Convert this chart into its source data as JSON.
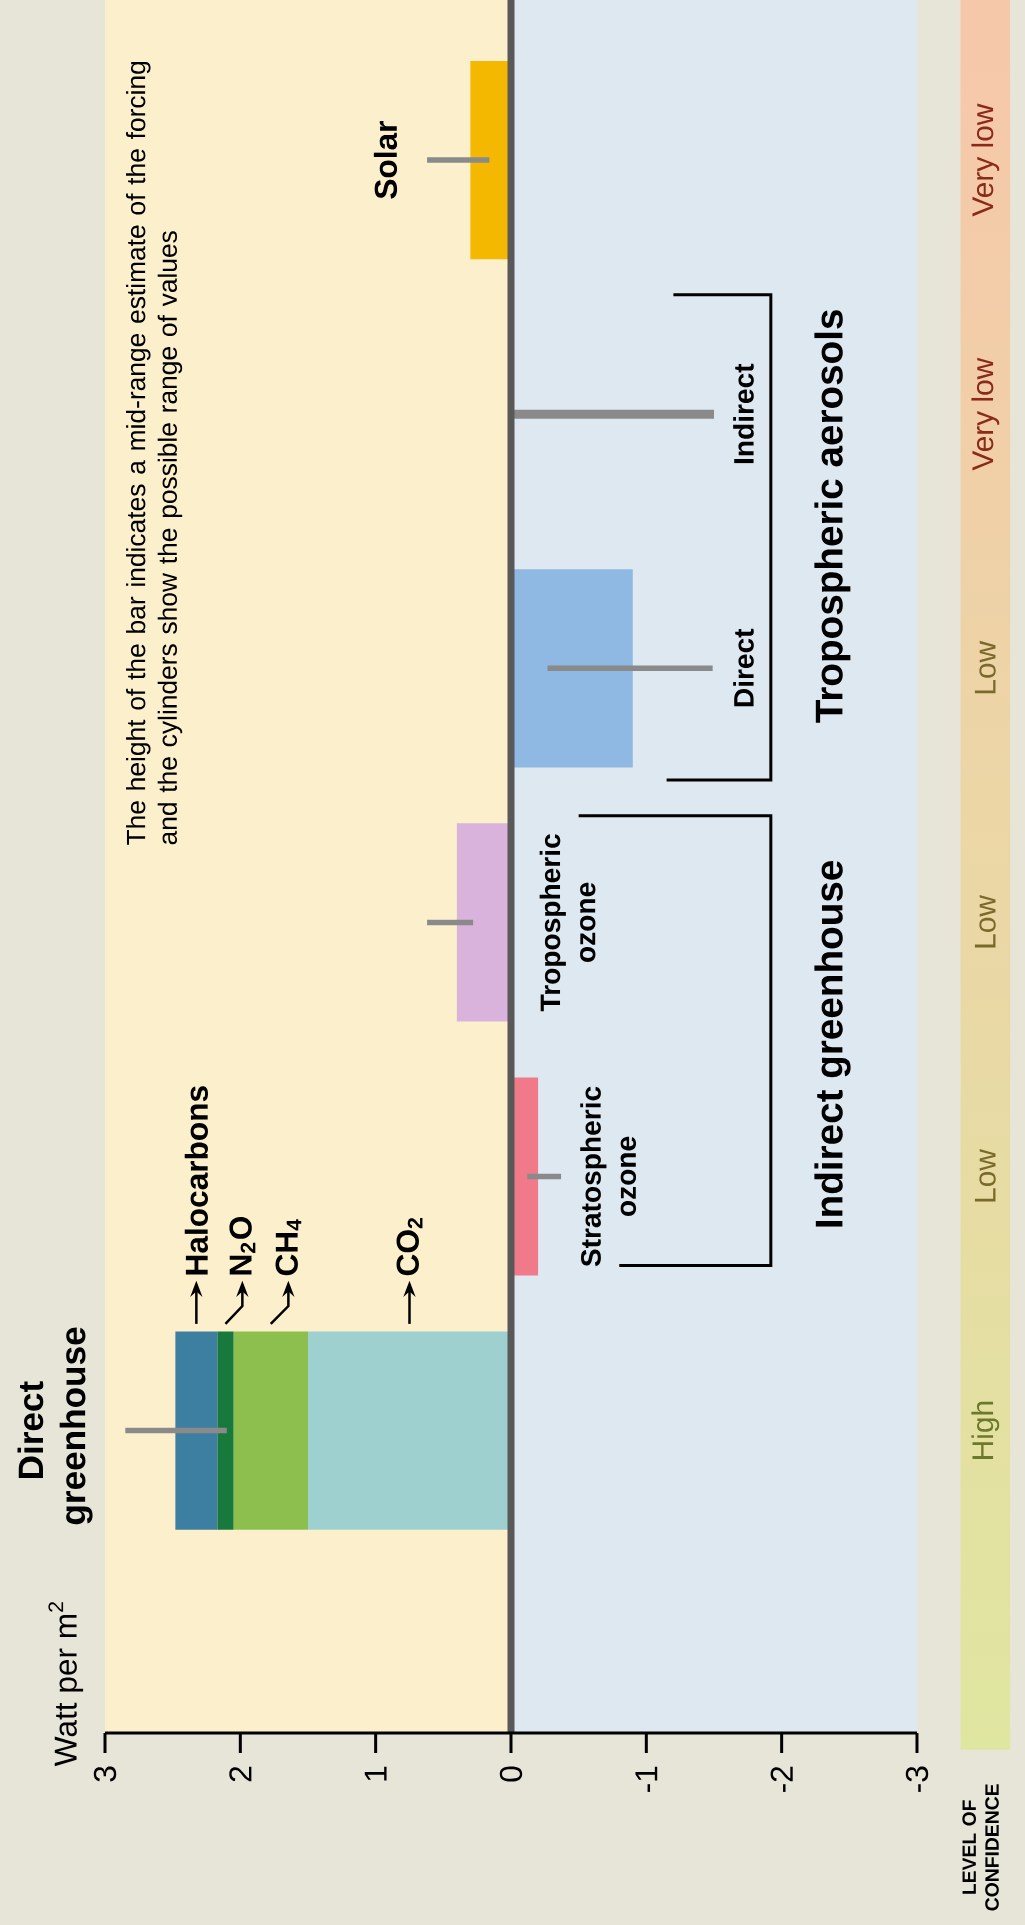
{
  "chart_data": {
    "type": "bar",
    "stacked": true,
    "orientation": "horizontal",
    "categories": [
      "Solar",
      "Indirect",
      "Direct",
      "Tropospheric ozone",
      "Stratospheric ozone",
      "Direct greenhouse"
    ],
    "series": [
      {
        "name": "CO$_{2}$",
        "color": "#9dd0cf",
        "values": [
          null,
          null,
          null,
          null,
          null,
          1.5
        ]
      },
      {
        "name": "CH$_{4}$",
        "color": "#8cbf4e",
        "values": [
          null,
          null,
          null,
          null,
          null,
          0.55
        ]
      },
      {
        "name": "N$_{2}$O",
        "color": "#17793c",
        "values": [
          null,
          null,
          null,
          null,
          null,
          0.12
        ]
      },
      {
        "name": "Halocarbons",
        "color": "#3d7fa0",
        "values": [
          null,
          null,
          null,
          null,
          null,
          0.31
        ],
        "errors": [
          null,
          null,
          null,
          null,
          null,
          [
            2.1,
            2.85
          ]
        ]
      },
      {
        "colors": [
          "#f5b800",
          null,
          "#8fb8e2",
          "#d9b3dc",
          "#f07a8a",
          null
        ],
        "values": [
          0.3,
          null,
          -0.9,
          0.4,
          -0.2,
          null
        ],
        "errors": [
          [
            0.16,
            0.62
          ],
          null,
          [
            -1.49,
            -0.27
          ],
          [
            0.28,
            0.62
          ],
          [
            -0.37,
            -0.12
          ],
          null
        ]
      },
      {
        "color": "#8a8a8a",
        "values": [
          null,
          -1.5,
          null,
          null,
          null,
          null
        ]
      }
    ],
    "xlim": [
      3,
      -3
    ],
    "xticks": [
      3,
      2,
      1,
      0,
      -1,
      -2,
      -3
    ],
    "bands": [
      {
        "axis": "x",
        "from": 0,
        "to": 3,
        "color": "#fcf0cc"
      },
      {
        "axis": "x",
        "from": -3,
        "to": 0,
        "color": "#dde8f1"
      }
    ],
    "annotations": [
      "The height of the bar indicates a mid-range estimate of the forcing and the cylinders show the possible range of values",
      "Indirect greenhouse",
      "Tropospheric aerosols",
      "LEVEL OF CONFIDENCE",
      "Very low",
      "Very low",
      "Low",
      "Low",
      "Low",
      "High",
      "Watt per m$^{2}$"
    ]
  }
}
